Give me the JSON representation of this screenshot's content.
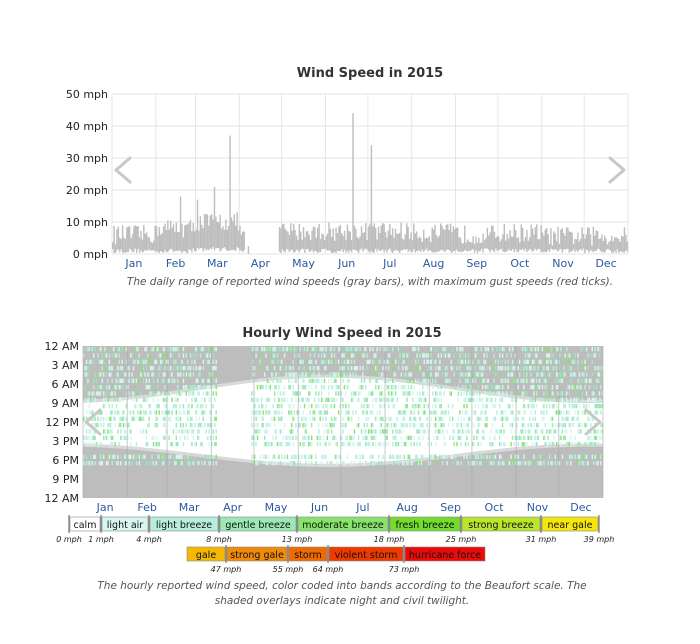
{
  "chart_data": [
    {
      "type": "bar",
      "title": "Wind Speed in 2015",
      "y_unit_ticks": [
        "0 mph",
        "10 mph",
        "20 mph",
        "30 mph",
        "40 mph",
        "50 mph"
      ],
      "y_tick_values": [
        0,
        10,
        20,
        30,
        40,
        50
      ],
      "ylim": [
        0,
        50
      ],
      "months": [
        "Jan",
        "Feb",
        "Mar",
        "Apr",
        "May",
        "Jun",
        "Jul",
        "Aug",
        "Sep",
        "Oct",
        "Nov",
        "Dec"
      ],
      "monthly_mean_high": [
        5.5,
        7.5,
        9.5,
        0,
        6.5,
        6.5,
        6.5,
        6.0,
        5.5,
        6.0,
        5.0,
        5.0
      ],
      "monthly_mean_low": [
        1.0,
        1.0,
        1.5,
        0,
        1.0,
        1.0,
        1.0,
        1.0,
        1.0,
        1.0,
        1.0,
        1.0
      ],
      "spikes": [
        {
          "day": 83,
          "value": 37
        },
        {
          "day": 72,
          "value": 21
        },
        {
          "day": 170,
          "value": 44
        },
        {
          "day": 183,
          "value": 34
        },
        {
          "day": 48,
          "value": 18
        },
        {
          "day": 60,
          "value": 17
        }
      ],
      "gap_days": [
        94,
        118
      ],
      "caption": "The daily range of reported wind speeds (gray bars), with maximum gust speeds (red ticks).",
      "grid": true
    },
    {
      "type": "heatmap",
      "title": "Hourly Wind Speed in 2015",
      "y_ticks": [
        "12 AM",
        "3 AM",
        "6 AM",
        "9 AM",
        "12 PM",
        "3 PM",
        "6 PM",
        "9 PM",
        "12 AM"
      ],
      "months": [
        "Jan",
        "Feb",
        "Mar",
        "Apr",
        "May",
        "Jun",
        "Jul",
        "Aug",
        "Sep",
        "Oct",
        "Nov",
        "Dec"
      ],
      "caption_line1": "The hourly reported wind speed, color coded into bands according to the Beaufort scale. The",
      "caption_line2": "shaded overlays indicate night and civil twilight.",
      "night_color": "#bdbdbd",
      "twilight_color": "#d9d9d9"
    }
  ],
  "legend": {
    "row1": [
      {
        "label": "calm",
        "color": "#ffffff"
      },
      {
        "label": "light air",
        "color": "#d8f5f0"
      },
      {
        "label": "light breeze",
        "color": "#b7eedd"
      },
      {
        "label": "gentle breeze",
        "color": "#9ae8b3"
      },
      {
        "label": "moderate breeze",
        "color": "#86e46a"
      },
      {
        "label": "fresh breeze",
        "color": "#72dd2c"
      },
      {
        "label": "strong breeze",
        "color": "#b9e62b"
      },
      {
        "label": "near gale",
        "color": "#f5e70a"
      }
    ],
    "row1_thresholds": [
      "0 mph",
      "1 mph",
      "4 mph",
      "8 mph",
      "13 mph",
      "18 mph",
      "25 mph",
      "31 mph",
      "39 mph"
    ],
    "row2": [
      {
        "label": "gale",
        "color": "#f5b800"
      },
      {
        "label": "strong gale",
        "color": "#f08a0a"
      },
      {
        "label": "storm",
        "color": "#ef6a00"
      },
      {
        "label": "violent storm",
        "color": "#ee3a00"
      },
      {
        "label": "hurricane force",
        "color": "#ea0a0a"
      }
    ],
    "row2_thresholds": [
      "47 mph",
      "55 mph",
      "64 mph",
      "73 mph"
    ]
  },
  "colors": {
    "bar": "#bdbdbd",
    "grid": "#e6e6e6",
    "month_label": "#2a5aa0"
  }
}
